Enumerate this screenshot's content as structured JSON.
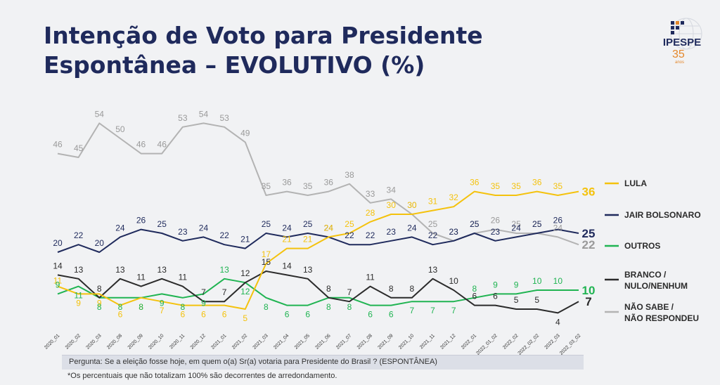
{
  "title": {
    "line1": "Intenção de Voto para Presidente",
    "line2": "Espontânea – EVOLUTIVO (%)"
  },
  "logo": {
    "name": "IPESPE",
    "years": "35",
    "sub": "anos"
  },
  "footer": {
    "question": "Pergunta:  Se a eleição fosse hoje, em quem o(a) Sr(a) votaria para  Presidente do Brasil ? (ESPONTÂNEA)",
    "note": "*Os percentuais que não totalizam 100% são decorrentes de arredondamento."
  },
  "chart_data": {
    "type": "line",
    "categories": [
      "2020_01",
      "2020_02",
      "2020_03",
      "2020_08",
      "2020_09",
      "2020_10",
      "2020_11",
      "2020_12",
      "2021_01",
      "2021_02",
      "2021_03",
      "2021_04",
      "2021_05",
      "2021_06",
      "2021_07",
      "2021_08",
      "2021_09",
      "2021_10",
      "2021_11",
      "2021_12",
      "2022_01",
      "2022_01_02",
      "2022_02",
      "2022_02_02",
      "2022_03",
      "2022_03_02"
    ],
    "series": [
      {
        "name": "NÃO SABE / NÃO RESPONDEU",
        "color": "#b3b3b3",
        "values": [
          46,
          45,
          54,
          50,
          46,
          46,
          53,
          54,
          53,
          49,
          35,
          36,
          35,
          36,
          38,
          33,
          34,
          30,
          25,
          23,
          25,
          26,
          25,
          25,
          24,
          22
        ]
      },
      {
        "name": "JAIR BOLSONARO",
        "color": "#1f2a5c",
        "values": [
          20,
          22,
          20,
          24,
          26,
          25,
          23,
          24,
          22,
          21,
          25,
          24,
          25,
          24,
          22,
          22,
          23,
          24,
          22,
          23,
          25,
          23,
          24,
          25,
          26,
          25
        ]
      },
      {
        "name": "LULA",
        "color": "#f4c20d",
        "values": [
          11,
          9,
          9,
          6,
          8,
          7,
          6,
          6,
          6,
          5,
          17,
          21,
          21,
          24,
          25,
          28,
          30,
          30,
          31,
          32,
          36,
          35,
          35,
          36,
          35,
          36
        ]
      },
      {
        "name": "OUTROS",
        "color": "#20b452",
        "values": [
          9,
          11,
          8,
          8,
          8,
          9,
          8,
          9,
          13,
          12,
          8,
          6,
          6,
          8,
          8,
          6,
          6,
          7,
          7,
          7,
          8,
          9,
          9,
          10,
          10,
          10
        ]
      },
      {
        "name": "BRANCO / NULO/NENHUM",
        "color": "#2b2b2b",
        "values": [
          14,
          13,
          8,
          13,
          11,
          13,
          11,
          7,
          7,
          12,
          15,
          14,
          13,
          8,
          7,
          11,
          8,
          8,
          13,
          10,
          6,
          6,
          5,
          5,
          4,
          7
        ]
      }
    ],
    "legend_position": "right"
  }
}
